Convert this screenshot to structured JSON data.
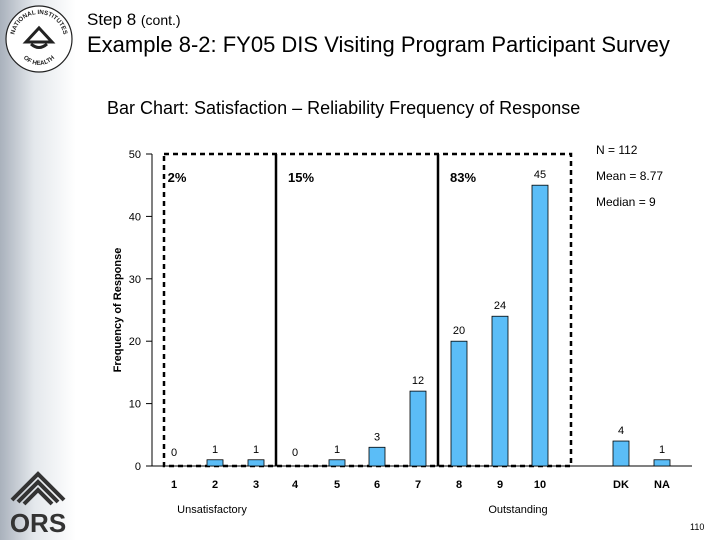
{
  "header": {
    "step_main": "Step 8",
    "step_small": "(cont.)",
    "title": "Example 8-2: FY05 DIS Visiting Program Participant Survey",
    "subtitle": "Bar Chart:  Satisfaction – Reliability Frequency of Response"
  },
  "logos": {
    "nih_text_top": "NATIONAL INSTITUTES",
    "nih_text_bottom": "OF HEALTH",
    "ors_text": "ORS"
  },
  "stats": {
    "n": "N = 112",
    "mean": "Mean = 8.77",
    "median": "Median = 9"
  },
  "chart_data": {
    "type": "bar",
    "title": "",
    "xlabel": "",
    "ylabel": "Frequency of Response",
    "ylim": [
      0,
      50
    ],
    "yticks": [
      0,
      10,
      20,
      30,
      40,
      50
    ],
    "categories": [
      "1",
      "2",
      "3",
      "4",
      "5",
      "6",
      "7",
      "8",
      "9",
      "10",
      "DK",
      "NA"
    ],
    "values": [
      0,
      1,
      1,
      0,
      1,
      3,
      12,
      20,
      24,
      45,
      4,
      1
    ],
    "bar_color": "#5bbdf7",
    "percent_labels": [
      "2%",
      "15%",
      "83%"
    ],
    "scale_labels": {
      "low": "Unsatisfactory",
      "high": "Outstanding"
    }
  },
  "footer": {
    "page_number": "110"
  }
}
